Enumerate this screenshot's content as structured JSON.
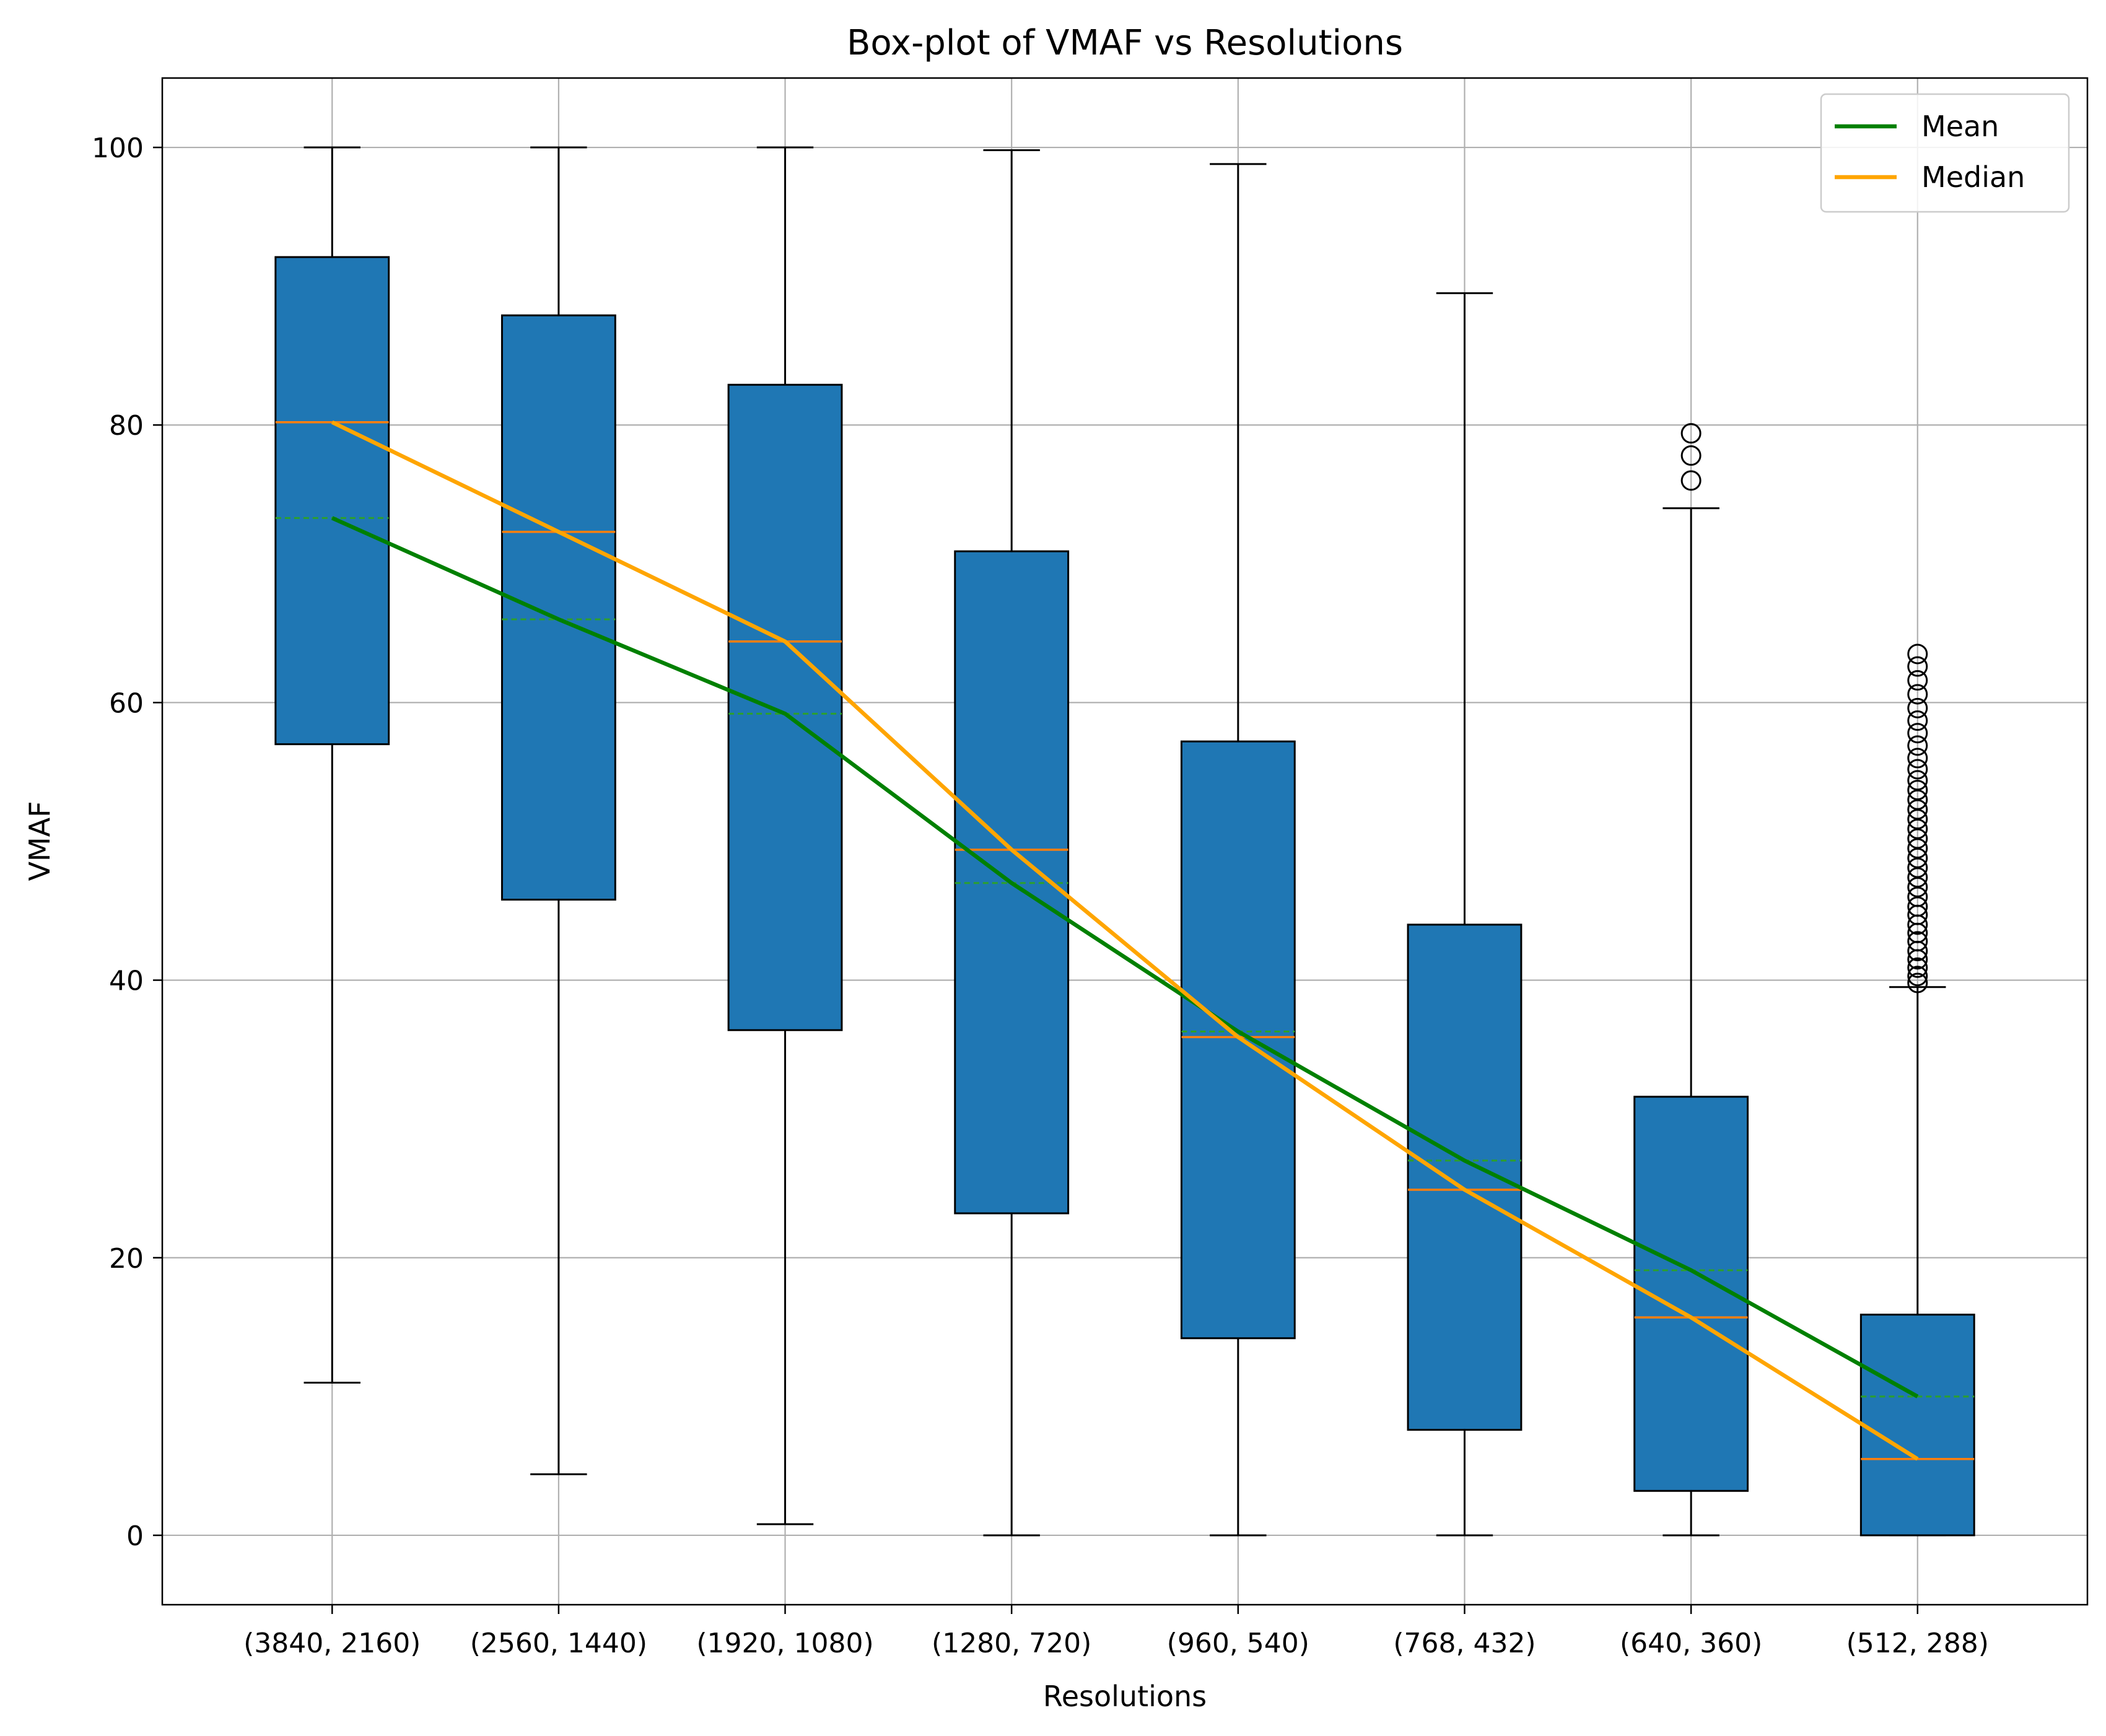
{
  "chart_data": {
    "type": "box",
    "title": "Box-plot of VMAF vs Resolutions",
    "xlabel": "Resolutions",
    "ylabel": "VMAF",
    "ylim": [
      -5,
      105
    ],
    "yticks": [
      0,
      20,
      40,
      60,
      80,
      100
    ],
    "grid": true,
    "legend_position": "top-right",
    "categories": [
      "(3840, 2160)",
      "(2560, 1440)",
      "(1920, 1080)",
      "(1280, 720)",
      "(960, 540)",
      "(768, 432)",
      "(640, 360)",
      "(512, 288)"
    ],
    "boxes": [
      {
        "whisker_low": 11.0,
        "q1": 57.0,
        "median": 80.2,
        "mean": 73.3,
        "q3": 92.1,
        "whisker_high": 100.0,
        "outliers": []
      },
      {
        "whisker_low": 4.4,
        "q1": 45.8,
        "median": 72.3,
        "mean": 66.0,
        "q3": 87.9,
        "whisker_high": 100.0,
        "outliers": []
      },
      {
        "whisker_low": 0.8,
        "q1": 36.4,
        "median": 64.4,
        "mean": 59.2,
        "q3": 82.9,
        "whisker_high": 100.0,
        "outliers": []
      },
      {
        "whisker_low": 0.0,
        "q1": 23.2,
        "median": 49.4,
        "mean": 47.0,
        "q3": 70.9,
        "whisker_high": 99.8,
        "outliers": []
      },
      {
        "whisker_low": 0.0,
        "q1": 14.2,
        "median": 35.9,
        "mean": 36.3,
        "q3": 57.2,
        "whisker_high": 98.8,
        "outliers": []
      },
      {
        "whisker_low": 0.0,
        "q1": 7.6,
        "median": 24.9,
        "mean": 27.0,
        "q3": 44.0,
        "whisker_high": 89.5,
        "outliers": []
      },
      {
        "whisker_low": 0.0,
        "q1": 3.2,
        "median": 15.7,
        "mean": 19.1,
        "q3": 31.6,
        "whisker_high": 74.0,
        "outliers": [
          76.0,
          77.8,
          79.4
        ]
      },
      {
        "whisker_low": 0.0,
        "q1": 0.0,
        "median": 5.5,
        "mean": 10.0,
        "q3": 15.9,
        "whisker_high": 39.5,
        "outliers": [
          39.8,
          40.3,
          40.9,
          41.5,
          42.1,
          42.8,
          43.4,
          44.0,
          44.7,
          45.3,
          46.0,
          46.7,
          47.4,
          48.1,
          48.8,
          49.5,
          50.2,
          50.9,
          51.6,
          52.3,
          53.0,
          53.7,
          54.4,
          55.2,
          56.0,
          56.9,
          57.8,
          58.7,
          59.6,
          60.6,
          61.6,
          62.6,
          63.5
        ]
      }
    ],
    "series": [
      {
        "name": "Mean",
        "color": "#008000",
        "values": [
          73.3,
          66.0,
          59.2,
          47.0,
          36.3,
          27.0,
          19.1,
          10.0
        ]
      },
      {
        "name": "Median",
        "color": "#ffa500",
        "values": [
          80.2,
          72.3,
          64.4,
          49.4,
          35.9,
          24.9,
          15.7,
          5.5
        ]
      }
    ],
    "colors": {
      "box_fill": "#1f77b4",
      "box_median": "#ff7f0e",
      "box_mean_dashed": "#2ca02c",
      "grid": "#b0b0b0"
    }
  }
}
